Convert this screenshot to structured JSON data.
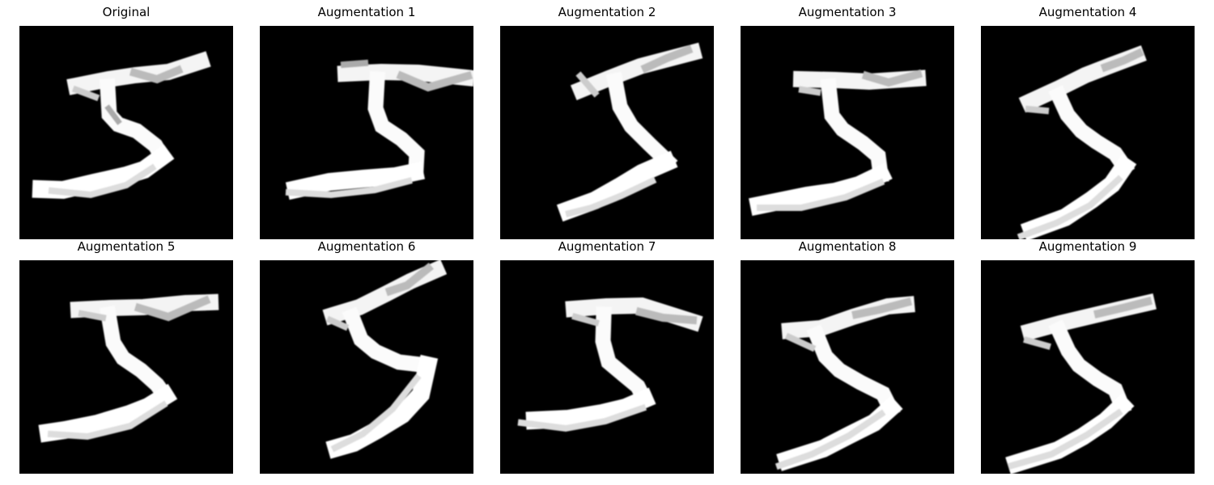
{
  "figure": {
    "background_color": "#ffffff",
    "image_background_color": "#000000",
    "panels": [
      {
        "title": "Original",
        "image": "handwritten-digit-five",
        "variant": "original"
      },
      {
        "title": "Augmentation 1",
        "image": "handwritten-digit-five",
        "variant": "shifted-right"
      },
      {
        "title": "Augmentation 2",
        "image": "handwritten-digit-five",
        "variant": "rotated-slanted"
      },
      {
        "title": "Augmentation 3",
        "image": "handwritten-digit-five",
        "variant": "shifted-down"
      },
      {
        "title": "Augmentation 4",
        "image": "handwritten-digit-five",
        "variant": "rotated-narrow"
      },
      {
        "title": "Augmentation 5",
        "image": "handwritten-digit-five",
        "variant": "shifted-down-slightly"
      },
      {
        "title": "Augmentation 6",
        "image": "handwritten-digit-five",
        "variant": "rotated-tall"
      },
      {
        "title": "Augmentation 7",
        "image": "handwritten-digit-five",
        "variant": "wide-lower"
      },
      {
        "title": "Augmentation 8",
        "image": "handwritten-digit-five",
        "variant": "rotated-compact"
      },
      {
        "title": "Augmentation 9",
        "image": "handwritten-digit-five",
        "variant": "rotated-wide"
      }
    ]
  }
}
